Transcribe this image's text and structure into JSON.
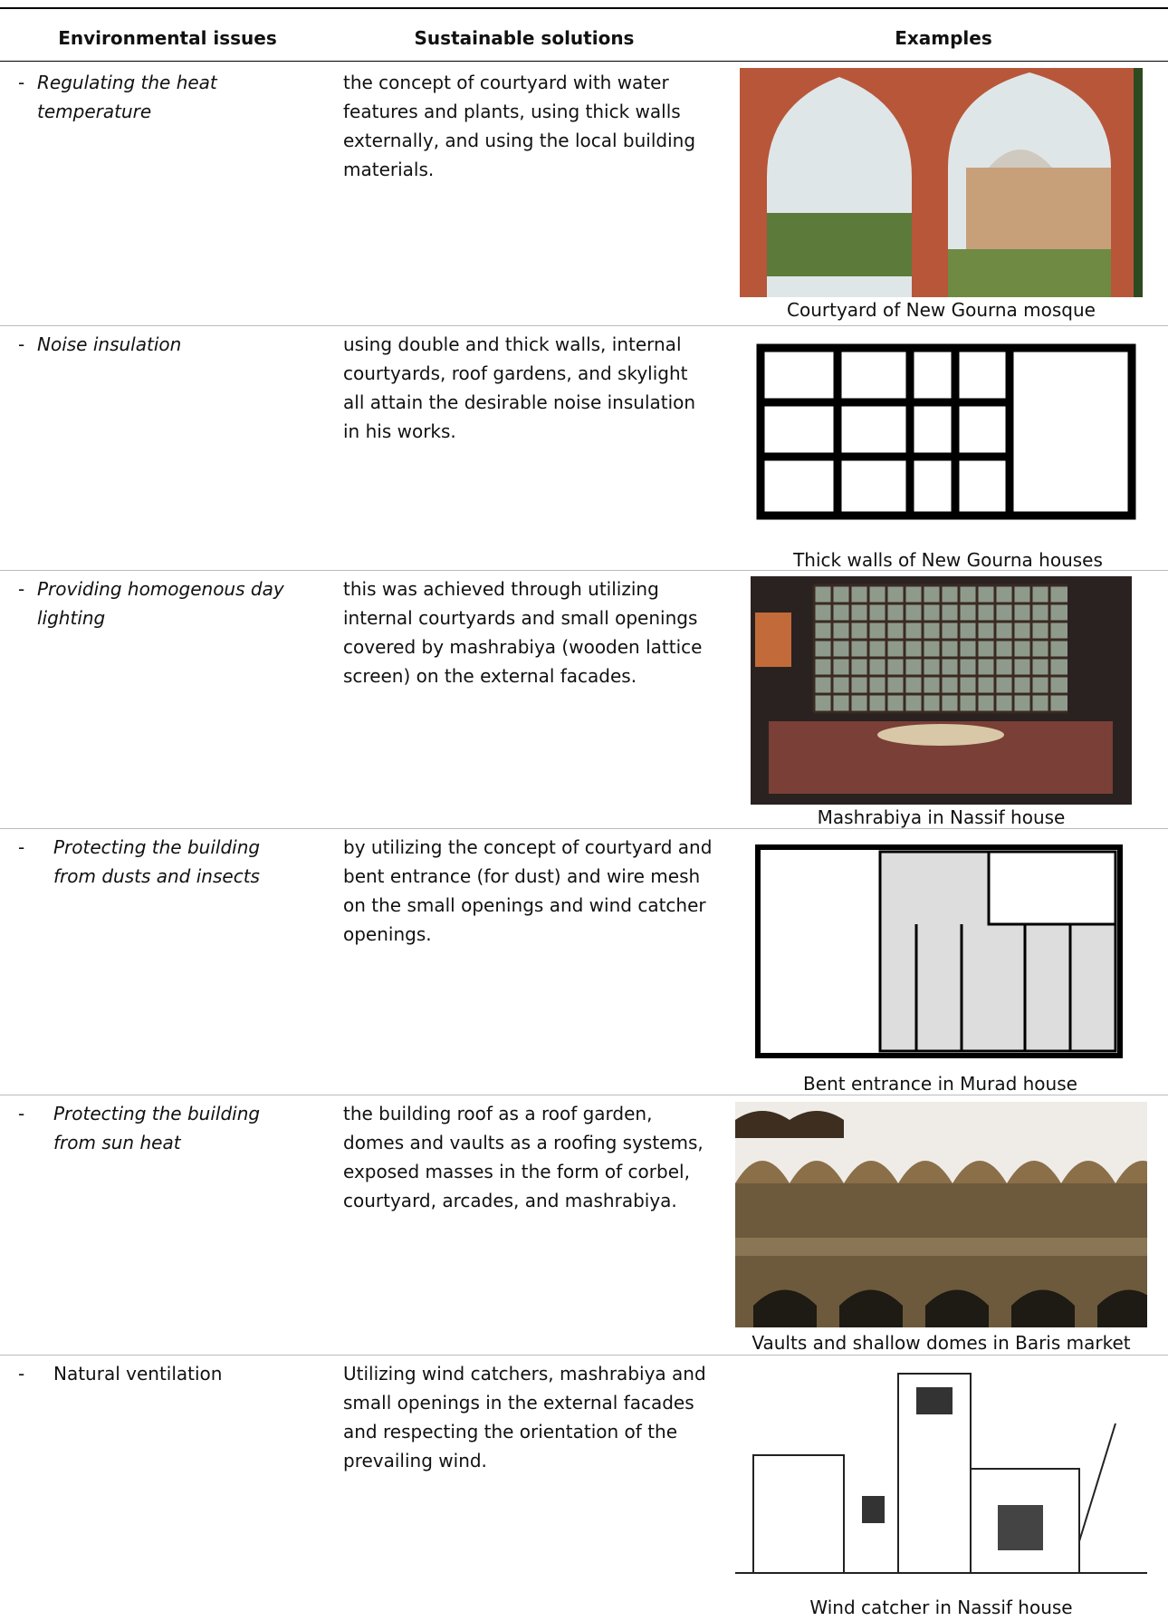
{
  "header": {
    "issues": "Environmental issues",
    "solutions": "Sustainable solutions",
    "examples": "Examples"
  },
  "table": {
    "rows": [
      {
        "bullet": "-",
        "issue": "Regulating the heat temperature",
        "italic": true,
        "solution": "the concept of courtyard with water features and plants, using thick walls externally, and using the local building materials.",
        "caption": "Courtyard of New Gourna mosque"
      },
      {
        "bullet": "-",
        "issue": "Noise insulation",
        "italic": true,
        "solution": "using double and thick walls, internal courtyards, roof gardens, and skylight all attain the desirable noise insulation in his works.",
        "caption": "Thick walls of New Gourna houses"
      },
      {
        "bullet": "-",
        "issue": "Providing homogenous day lighting",
        "italic": true,
        "solution": "this was achieved through utilizing internal courtyards and small openings covered by mashrabiya (wooden lattice screen) on the external facades.",
        "caption": "Mashrabiya in Nassif house"
      },
      {
        "bullet": "-",
        "issue": "Protecting the building from dusts and insects",
        "italic": true,
        "solution": "by utilizing the concept of courtyard and bent entrance (for dust) and wire mesh on the small openings and wind catcher openings.",
        "caption": "Bent entrance in Murad house"
      },
      {
        "bullet": "-",
        "issue": "Protecting the building from sun heat",
        "italic": true,
        "solution": "the building roof as a roof garden, domes and vaults as a roofing systems, exposed masses in the form of corbel, courtyard,  arcades, and mashrabiya.",
        "caption": "Vaults and shallow domes in Baris market"
      },
      {
        "bullet": "-",
        "issue": "Natural ventilation",
        "italic": false,
        "solution": "Utilizing wind catchers, mashrabiya and small openings in the external facades and respecting the orientation of the prevailing wind.",
        "caption": "Wind catcher in Nassif house"
      }
    ]
  }
}
